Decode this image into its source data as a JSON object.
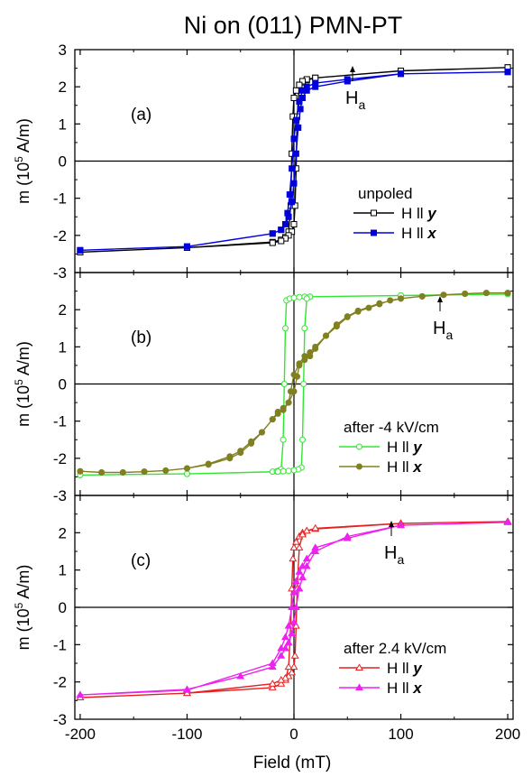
{
  "title": "Ni on (011) PMN-PT",
  "xlabel": "Field (mT)",
  "x_ticks": [
    "-200",
    "-100",
    "0",
    "100",
    "200"
  ],
  "y_ticks": [
    "3",
    "2",
    "1",
    "0",
    "-1",
    "-2",
    "-3"
  ],
  "ylabel_prefix": "m (10",
  "ylabel_exp": "5",
  "ylabel_suffix": " A/m)",
  "panels": [
    {
      "label": "(a)",
      "ha_main": "H",
      "ha_sub": "a",
      "legend_title": "unpoled",
      "legend_entries": [
        {
          "prefix": "H ll ",
          "axis": "y"
        },
        {
          "prefix": "H ll ",
          "axis": "x"
        }
      ]
    },
    {
      "label": "(b)",
      "ha_main": "H",
      "ha_sub": "a",
      "legend_title": "after -4 kV/cm",
      "legend_entries": [
        {
          "prefix": "H ll ",
          "axis": "y"
        },
        {
          "prefix": "H ll ",
          "axis": "x"
        }
      ]
    },
    {
      "label": "(c)",
      "ha_main": "H",
      "ha_sub": "a",
      "legend_title": "after 2.4 kV/cm",
      "legend_entries": [
        {
          "prefix": "H ll ",
          "axis": "y"
        },
        {
          "prefix": "H ll ",
          "axis": "x"
        }
      ]
    }
  ],
  "chart_data": [
    {
      "type": "line",
      "panel": "(a)",
      "xlim": [
        -205,
        205
      ],
      "ylim": [
        -3,
        3
      ],
      "series": [
        {
          "name": "H ll y",
          "color": "#000000",
          "marker": "open-square",
          "values": [
            [
              -200,
              -2.45
            ],
            [
              -100,
              -2.33
            ],
            [
              -20,
              -2.18
            ],
            [
              -12,
              -2.12
            ],
            [
              -8,
              -2.05
            ],
            [
              -5,
              -1.9
            ],
            [
              -3,
              -1.2
            ],
            [
              -2,
              0.2
            ],
            [
              -1,
              1.2
            ],
            [
              0,
              1.7
            ],
            [
              2,
              1.9
            ],
            [
              5,
              2.05
            ],
            [
              8,
              2.12
            ],
            [
              12,
              2.18
            ],
            [
              20,
              2.24
            ],
            [
              100,
              2.43
            ],
            [
              200,
              2.52
            ],
            [
              200,
              2.52
            ],
            [
              100,
              2.43
            ],
            [
              20,
              2.24
            ],
            [
              12,
              2.2
            ],
            [
              8,
              2.15
            ],
            [
              5,
              2.05
            ],
            [
              3,
              1.2
            ],
            [
              2,
              -0.2
            ],
            [
              1,
              -1.2
            ],
            [
              0,
              -1.7
            ],
            [
              -2,
              -1.9
            ],
            [
              -5,
              -2.0
            ],
            [
              -8,
              -2.08
            ],
            [
              -12,
              -2.15
            ],
            [
              -20,
              -2.2
            ],
            [
              -100,
              -2.33
            ],
            [
              -200,
              -2.45
            ]
          ]
        },
        {
          "name": "H ll x",
          "color": "#0000dd",
          "marker": "filled-square",
          "values": [
            [
              -200,
              -2.4
            ],
            [
              -100,
              -2.3
            ],
            [
              -20,
              -1.95
            ],
            [
              -12,
              -1.85
            ],
            [
              -8,
              -1.7
            ],
            [
              -5,
              -1.5
            ],
            [
              -2,
              -1.1
            ],
            [
              0,
              -0.6
            ],
            [
              2,
              0.2
            ],
            [
              4,
              0.9
            ],
            [
              6,
              1.4
            ],
            [
              8,
              1.7
            ],
            [
              12,
              1.9
            ],
            [
              20,
              2.0
            ],
            [
              50,
              2.15
            ],
            [
              100,
              2.35
            ],
            [
              200,
              2.4
            ],
            [
              200,
              2.4
            ],
            [
              100,
              2.35
            ],
            [
              50,
              2.2
            ],
            [
              20,
              2.1
            ],
            [
              12,
              2.0
            ],
            [
              8,
              1.9
            ],
            [
              5,
              1.6
            ],
            [
              2,
              1.1
            ],
            [
              0,
              0.6
            ],
            [
              -2,
              -0.2
            ],
            [
              -4,
              -0.9
            ],
            [
              -6,
              -1.4
            ],
            [
              -8,
              -1.7
            ],
            [
              -12,
              -1.85
            ],
            [
              -20,
              -1.95
            ],
            [
              -100,
              -2.3
            ],
            [
              -200,
              -2.4
            ]
          ]
        }
      ]
    },
    {
      "type": "line",
      "panel": "(b)",
      "xlim": [
        -205,
        205
      ],
      "ylim": [
        -3,
        3
      ],
      "series": [
        {
          "name": "H ll y",
          "color": "#33e633",
          "marker": "open-circle",
          "values": [
            [
              -200,
              -2.45
            ],
            [
              -100,
              -2.42
            ],
            [
              -20,
              -2.36
            ],
            [
              -16,
              -2.35
            ],
            [
              -14,
              -2.33
            ],
            [
              -12,
              -2.3
            ],
            [
              -10,
              -1.5
            ],
            [
              -9,
              0.0
            ],
            [
              -8,
              1.5
            ],
            [
              -7,
              2.25
            ],
            [
              -4,
              2.3
            ],
            [
              0,
              2.32
            ],
            [
              5,
              2.34
            ],
            [
              10,
              2.35
            ],
            [
              15,
              2.35
            ],
            [
              100,
              2.38
            ],
            [
              200,
              2.42
            ],
            [
              200,
              2.42
            ],
            [
              100,
              2.38
            ],
            [
              15,
              2.35
            ],
            [
              12,
              2.3
            ],
            [
              10,
              1.5
            ],
            [
              9,
              0.0
            ],
            [
              8,
              -1.5
            ],
            [
              7,
              -2.25
            ],
            [
              4,
              -2.3
            ],
            [
              0,
              -2.32
            ],
            [
              -5,
              -2.34
            ],
            [
              -10,
              -2.35
            ],
            [
              -15,
              -2.36
            ],
            [
              -100,
              -2.42
            ],
            [
              -200,
              -2.45
            ]
          ]
        },
        {
          "name": "H ll x",
          "color": "#808020",
          "marker": "filled-circle",
          "values": [
            [
              -200,
              -2.35
            ],
            [
              -180,
              -2.38
            ],
            [
              -160,
              -2.38
            ],
            [
              -140,
              -2.36
            ],
            [
              -120,
              -2.33
            ],
            [
              -100,
              -2.27
            ],
            [
              -80,
              -2.17
            ],
            [
              -60,
              -2.0
            ],
            [
              -50,
              -1.85
            ],
            [
              -40,
              -1.6
            ],
            [
              -30,
              -1.3
            ],
            [
              -20,
              -0.95
            ],
            [
              -15,
              -0.8
            ],
            [
              -10,
              -0.7
            ],
            [
              -5,
              -0.5
            ],
            [
              0,
              -0.2
            ],
            [
              3,
              0.2
            ],
            [
              5,
              0.5
            ],
            [
              10,
              0.65
            ],
            [
              15,
              0.75
            ],
            [
              20,
              0.95
            ],
            [
              30,
              1.3
            ],
            [
              40,
              1.55
            ],
            [
              50,
              1.8
            ],
            [
              60,
              1.95
            ],
            [
              70,
              2.05
            ],
            [
              80,
              2.15
            ],
            [
              90,
              2.25
            ],
            [
              100,
              2.3
            ],
            [
              120,
              2.36
            ],
            [
              140,
              2.4
            ],
            [
              160,
              2.43
            ],
            [
              180,
              2.45
            ],
            [
              200,
              2.45
            ],
            [
              200,
              2.45
            ],
            [
              180,
              2.45
            ],
            [
              160,
              2.43
            ],
            [
              140,
              2.4
            ],
            [
              120,
              2.36
            ],
            [
              100,
              2.3
            ],
            [
              80,
              2.17
            ],
            [
              60,
              1.97
            ],
            [
              50,
              1.82
            ],
            [
              40,
              1.6
            ],
            [
              30,
              1.3
            ],
            [
              20,
              1.0
            ],
            [
              15,
              0.85
            ],
            [
              10,
              0.75
            ],
            [
              5,
              0.55
            ],
            [
              0,
              0.25
            ],
            [
              -3,
              -0.2
            ],
            [
              -5,
              -0.5
            ],
            [
              -10,
              -0.65
            ],
            [
              -15,
              -0.75
            ],
            [
              -20,
              -0.95
            ],
            [
              -30,
              -1.3
            ],
            [
              -40,
              -1.55
            ],
            [
              -50,
              -1.8
            ],
            [
              -60,
              -1.95
            ],
            [
              -80,
              -2.15
            ],
            [
              -100,
              -2.27
            ],
            [
              -120,
              -2.33
            ],
            [
              -140,
              -2.36
            ],
            [
              -160,
              -2.38
            ],
            [
              -180,
              -2.38
            ],
            [
              -200,
              -2.35
            ]
          ]
        }
      ]
    },
    {
      "type": "line",
      "panel": "(c)",
      "xlim": [
        -205,
        205
      ],
      "ylim": [
        -3,
        3
      ],
      "series": [
        {
          "name": "H ll y",
          "color": "#e62020",
          "marker": "open-triangle",
          "values": [
            [
              -200,
              -2.42
            ],
            [
              -100,
              -2.3
            ],
            [
              -20,
              -2.15
            ],
            [
              -12,
              -2.05
            ],
            [
              -8,
              -1.95
            ],
            [
              -5,
              -1.6
            ],
            [
              -3,
              -0.5
            ],
            [
              -2,
              0.5
            ],
            [
              -1,
              1.3
            ],
            [
              0,
              1.6
            ],
            [
              2,
              1.75
            ],
            [
              5,
              1.9
            ],
            [
              8,
              2.0
            ],
            [
              12,
              2.05
            ],
            [
              20,
              2.1
            ],
            [
              100,
              2.25
            ],
            [
              200,
              2.3
            ],
            [
              200,
              2.3
            ],
            [
              100,
              2.25
            ],
            [
              20,
              2.12
            ],
            [
              12,
              2.05
            ],
            [
              8,
              1.95
            ],
            [
              5,
              1.6
            ],
            [
              3,
              0.5
            ],
            [
              2,
              -0.5
            ],
            [
              1,
              -1.3
            ],
            [
              0,
              -1.6
            ],
            [
              -2,
              -1.75
            ],
            [
              -5,
              -1.85
            ],
            [
              -8,
              -1.9
            ],
            [
              -12,
              -1.95
            ],
            [
              -20,
              -2.05
            ],
            [
              -100,
              -2.3
            ],
            [
              -200,
              -2.42
            ]
          ]
        },
        {
          "name": "H ll x",
          "color": "#ee22ee",
          "marker": "filled-triangle",
          "values": [
            [
              -200,
              -2.35
            ],
            [
              -100,
              -2.22
            ],
            [
              -20,
              -1.5
            ],
            [
              -12,
              -1.1
            ],
            [
              -8,
              -0.8
            ],
            [
              -5,
              -0.5
            ],
            [
              -2,
              0.0
            ],
            [
              0,
              0.4
            ],
            [
              2,
              0.7
            ],
            [
              5,
              0.95
            ],
            [
              8,
              1.1
            ],
            [
              12,
              1.3
            ],
            [
              20,
              1.6
            ],
            [
              50,
              1.85
            ],
            [
              100,
              2.2
            ],
            [
              200,
              2.28
            ],
            [
              200,
              2.28
            ],
            [
              100,
              2.2
            ],
            [
              50,
              1.9
            ],
            [
              20,
              1.5
            ],
            [
              12,
              1.1
            ],
            [
              8,
              0.8
            ],
            [
              5,
              0.5
            ],
            [
              2,
              0.0
            ],
            [
              0,
              -0.4
            ],
            [
              -2,
              -0.7
            ],
            [
              -5,
              -0.95
            ],
            [
              -8,
              -1.1
            ],
            [
              -12,
              -1.3
            ],
            [
              -20,
              -1.6
            ],
            [
              -50,
              -1.85
            ],
            [
              -100,
              -2.2
            ],
            [
              -200,
              -2.35
            ]
          ]
        }
      ]
    }
  ]
}
